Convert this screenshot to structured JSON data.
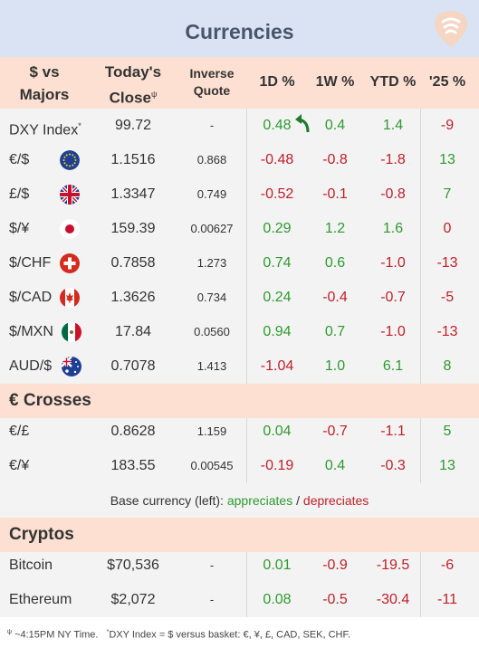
{
  "title": "Currencies",
  "icons": {
    "logo": "guitar-pick-logo",
    "arrow": "curved-arrow-up-left-icon"
  },
  "colors": {
    "positive": "#2e9a30",
    "negative": "#c0202a",
    "header_bg": "#d9e3f3",
    "section_bg": "#fde0d2"
  },
  "columns": {
    "pair_line1": "$ vs",
    "pair_line2": "Majors",
    "close_line1": "Today's",
    "close_line2": "Close",
    "close_mark": "ψ",
    "inverse_line1": "Inverse",
    "inverse_line2": "Quote",
    "d1": "1D %",
    "w1": "1W %",
    "ytd": "YTD %",
    "y25": "'25 %"
  },
  "majors": [
    {
      "name": "DXY Index",
      "mark": "*",
      "close": "99.72",
      "inverse": "-",
      "d1": "0.48",
      "w1": "0.4",
      "ytd": "1.4",
      "y25": "-9"
    },
    {
      "name": "€/$",
      "flag": "eu-flag-icon",
      "close": "1.1516",
      "inverse": "0.868",
      "d1": "-0.48",
      "w1": "-0.8",
      "ytd": "-1.8",
      "y25": "13"
    },
    {
      "name": "£/$",
      "flag": "uk-flag-icon",
      "close": "1.3347",
      "inverse": "0.749",
      "d1": "-0.52",
      "w1": "-0.1",
      "ytd": "-0.8",
      "y25": "7"
    },
    {
      "name": "$/¥",
      "flag": "japan-flag-icon",
      "close": "159.39",
      "inverse": "0.00627",
      "d1": "0.29",
      "w1": "1.2",
      "ytd": "1.6",
      "y25": "0"
    },
    {
      "name": "$/CHF",
      "flag": "swiss-flag-icon",
      "close": "0.7858",
      "inverse": "1.273",
      "d1": "0.74",
      "w1": "0.6",
      "ytd": "-1.0",
      "y25": "-13"
    },
    {
      "name": "$/CAD",
      "flag": "canada-flag-icon",
      "close": "1.3626",
      "inverse": "0.734",
      "d1": "0.24",
      "w1": "-0.4",
      "ytd": "-0.7",
      "y25": "-5"
    },
    {
      "name": "$/MXN",
      "flag": "mexico-flag-icon",
      "close": "17.84",
      "inverse": "0.0560",
      "d1": "0.94",
      "w1": "0.7",
      "ytd": "-1.0",
      "y25": "-13"
    },
    {
      "name": "AUD/$",
      "flag": "australia-flag-icon",
      "close": "0.7078",
      "inverse": "1.413",
      "d1": "-1.04",
      "w1": "1.0",
      "ytd": "6.1",
      "y25": "8"
    }
  ],
  "crosses_title": "€ Crosses",
  "crosses": [
    {
      "name": "€/£",
      "close": "0.8628",
      "inverse": "1.159",
      "d1": "0.04",
      "w1": "-0.7",
      "ytd": "-1.1",
      "y25": "5"
    },
    {
      "name": "€/¥",
      "close": "183.55",
      "inverse": "0.00545",
      "d1": "-0.19",
      "w1": "0.4",
      "ytd": "-0.3",
      "y25": "13"
    }
  ],
  "legend": {
    "prefix": "Base currency (left):",
    "appreciates": "appreciates",
    "slash": "/",
    "depreciates": "depreciates"
  },
  "cryptos_title": "Cryptos",
  "cryptos": [
    {
      "name": "Bitcoin",
      "close": "$70,536",
      "inverse": "-",
      "d1": "0.01",
      "w1": "-0.9",
      "ytd": "-19.5",
      "y25": "-6"
    },
    {
      "name": "Ethereum",
      "close": "$2,072",
      "inverse": "-",
      "d1": "0.08",
      "w1": "-0.5",
      "ytd": "-30.4",
      "y25": "-11"
    }
  ],
  "footer": {
    "mark1": "ψ",
    "text1": "~4:15PM NY Time.",
    "mark2": "*",
    "text2": "DXY Index = $ versus basket: €, ¥, £, CAD, SEK, CHF."
  }
}
